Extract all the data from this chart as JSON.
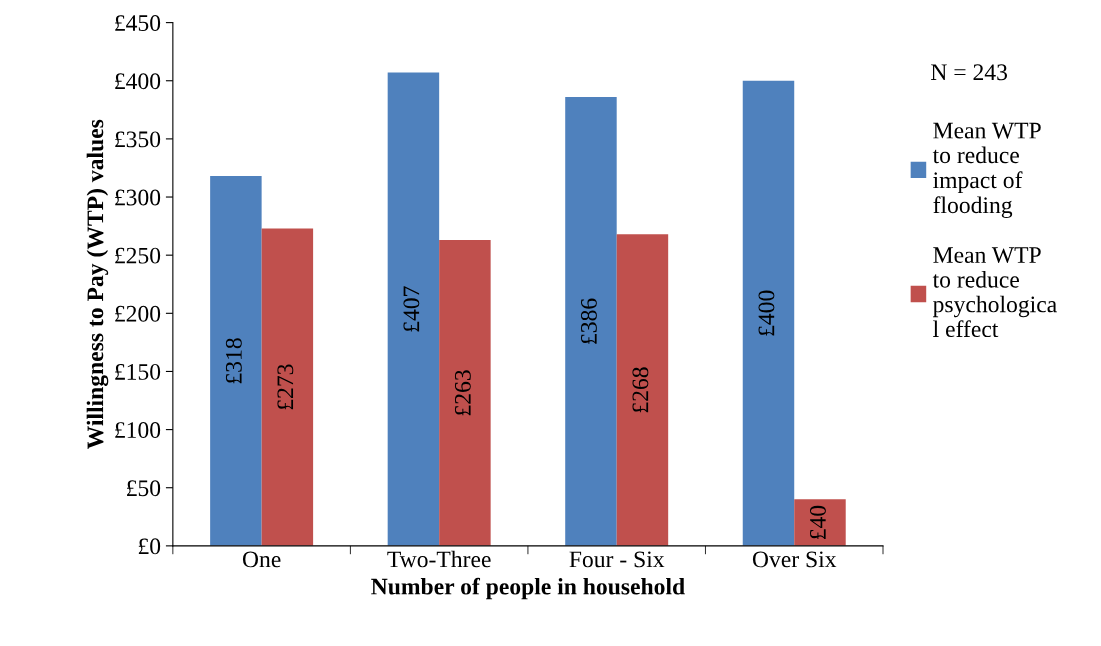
{
  "chart_data": {
    "type": "bar",
    "xlabel": "Number of people in household",
    "ylabel": "Willingness to Pay (WTP) values",
    "categories": [
      "One",
      "Two-Three",
      "Four - Six",
      "Over Six"
    ],
    "series": [
      {
        "name": "Mean WTP\nto reduce\nimpact of\nflooding",
        "color": "#4f81bd",
        "values": [
          318,
          407,
          386,
          400
        ],
        "value_labels": [
          "£318",
          "£407",
          "£386",
          "£400"
        ]
      },
      {
        "name": "Mean WTP\nto reduce\npsychologica\nl effect",
        "color": "#c0504d",
        "values": [
          273,
          263,
          268,
          40
        ],
        "value_labels": [
          "£273",
          "£263",
          "£268",
          "£40"
        ]
      }
    ],
    "ylim": [
      0,
      450
    ],
    "yticks": [
      {
        "value": 0,
        "label": "£0"
      },
      {
        "value": 50,
        "label": "£50"
      },
      {
        "value": 100,
        "label": "£100"
      },
      {
        "value": 150,
        "label": "£150"
      },
      {
        "value": 200,
        "label": "£200"
      },
      {
        "value": 250,
        "label": "£250"
      },
      {
        "value": 300,
        "label": "£300"
      },
      {
        "value": 350,
        "label": "£350"
      },
      {
        "value": 400,
        "label": "£400"
      },
      {
        "value": 450,
        "label": "£450"
      }
    ],
    "annotations": [
      "N = 243"
    ],
    "legend": "right",
    "grid": false
  }
}
